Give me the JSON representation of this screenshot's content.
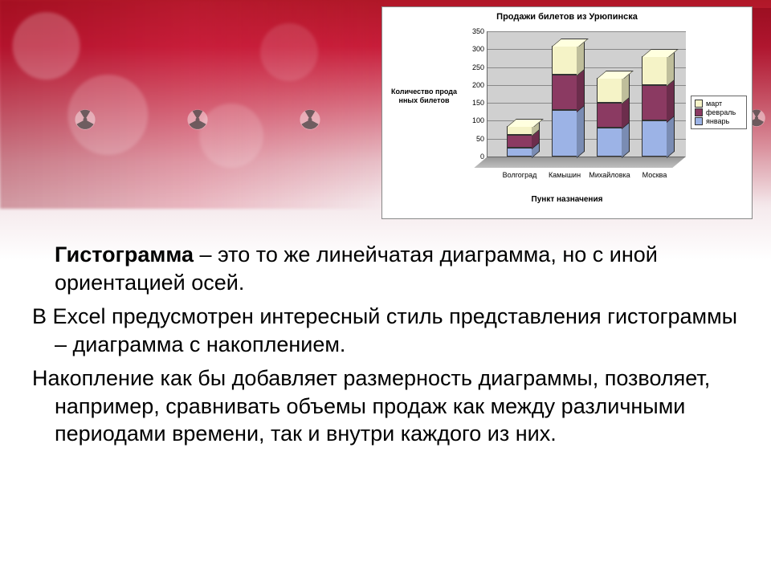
{
  "chart": {
    "type": "stacked-bar-3d",
    "title": "Продажи билетов из Урюпинска",
    "y_axis_label": "Количество прода нных билетов",
    "x_axis_label": "Пункт назначения",
    "ylim": [
      0,
      350
    ],
    "ytick_step": 50,
    "yticks": [
      "0",
      "50",
      "100",
      "150",
      "200",
      "250",
      "300",
      "350"
    ],
    "categories": [
      "Волгоград",
      "Камышин",
      "Михайловка",
      "Москва"
    ],
    "series": [
      {
        "name": "январь",
        "color": "#9cb3e6",
        "values": [
          25,
          130,
          80,
          100
        ]
      },
      {
        "name": "февраль",
        "color": "#8b3a62",
        "values": [
          35,
          100,
          70,
          100
        ]
      },
      {
        "name": "март",
        "color": "#f5f3c7",
        "values": [
          25,
          80,
          70,
          80
        ]
      }
    ],
    "legend_order": [
      "март",
      "февраль",
      "январь"
    ],
    "plot_bg": "#d0d0d0",
    "grid_color": "#888888",
    "chart_bg": "#ffffff",
    "title_fontsize": 11,
    "tick_fontsize": 9,
    "label_fontsize": 10
  },
  "text": {
    "p1_bold": "Гистограмма",
    "p1_rest": " – это то же линейчатая диаграмма, но с иной ориентацией осей.",
    "p2": "В Excel предусмотрен интересный стиль представления гистограммы – диаграмма с накоплением.",
    "p3": "Накопление как бы добавляет размерность диаграммы, позволяет, например, сравнивать объемы продаж как между различными периодами времени, так и внутри каждого из них."
  },
  "colors": {
    "bg_red": "#c81e3a",
    "text": "#000000"
  }
}
